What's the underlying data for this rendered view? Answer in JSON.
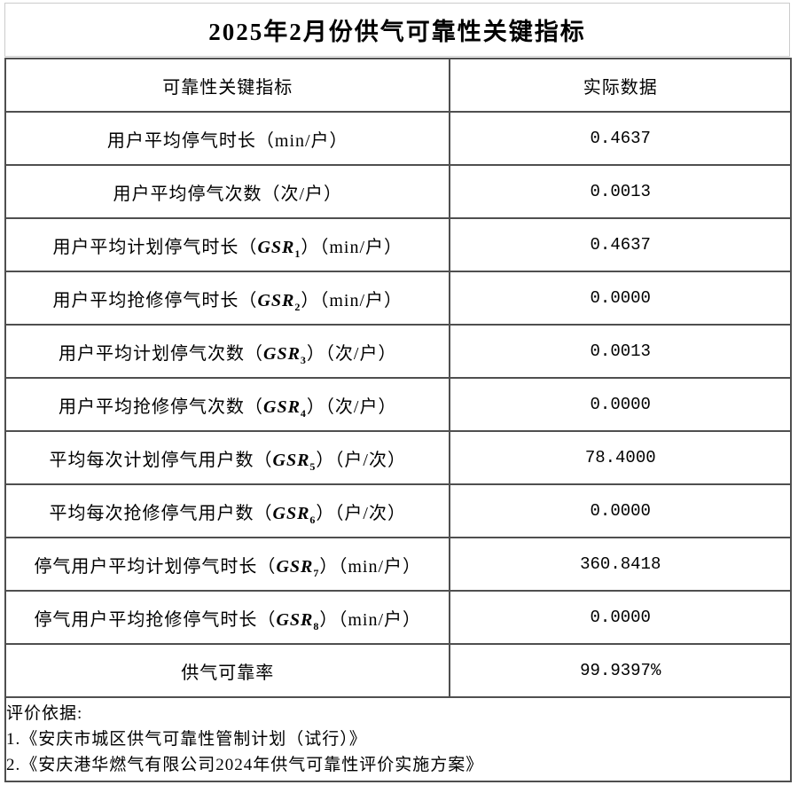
{
  "title": "2025年2月份供气可靠性关键指标",
  "table": {
    "header": {
      "indicator": "可靠性关键指标",
      "actual": "实际数据"
    },
    "rows": [
      {
        "pre": "用户平均停气时长（min/户）",
        "gsr": "",
        "sub": "",
        "post": "",
        "value": "0.4637"
      },
      {
        "pre": "用户平均停气次数（次/户）",
        "gsr": "",
        "sub": "",
        "post": "",
        "value": "0.0013"
      },
      {
        "pre": "用户平均计划停气时长（",
        "gsr": "GSR",
        "sub": "1",
        "post": "）（min/户）",
        "value": "0.4637"
      },
      {
        "pre": "用户平均抢修停气时长（",
        "gsr": "GSR",
        "sub": "2",
        "post": "）（min/户）",
        "value": "0.0000"
      },
      {
        "pre": "用户平均计划停气次数（",
        "gsr": "GSR",
        "sub": "3",
        "post": "）（次/户）",
        "value": "0.0013"
      },
      {
        "pre": "用户平均抢修停气次数（",
        "gsr": "GSR",
        "sub": "4",
        "post": "）（次/户）",
        "value": "0.0000"
      },
      {
        "pre": "平均每次计划停气用户数（",
        "gsr": "GSR",
        "sub": "5",
        "post": "）（户/次）",
        "value": "78.4000"
      },
      {
        "pre": "平均每次抢修停气用户数（",
        "gsr": "GSR",
        "sub": "6",
        "post": "）（户/次）",
        "value": "0.0000"
      },
      {
        "pre": "停气用户平均计划停气时长（",
        "gsr": "GSR",
        "sub": "7",
        "post": "）（min/户）",
        "value": "360.8418"
      },
      {
        "pre": "停气用户平均抢修停气时长（",
        "gsr": "GSR",
        "sub": "8",
        "post": "）（min/户）",
        "value": "0.0000"
      },
      {
        "pre": "供气可靠率",
        "gsr": "",
        "sub": "",
        "post": "",
        "value": "99.9397%"
      }
    ]
  },
  "footer": {
    "lines": [
      "评价依据:",
      "1.《安庆市城区供气可靠性管制计划（试行）》",
      "2.《安庆港华燃气有限公司2024年供气可靠性评价实施方案》"
    ]
  },
  "colors": {
    "table_border": "#4f4f4f",
    "title_border": "#cccccc",
    "text": "#000000",
    "background": "#ffffff"
  }
}
